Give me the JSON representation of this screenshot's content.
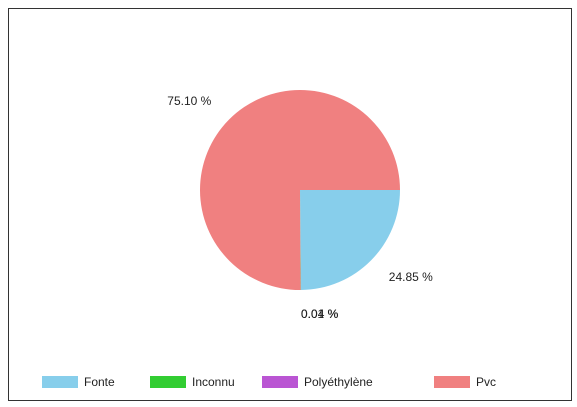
{
  "chart_data": {
    "type": "pie",
    "categories": [
      "Fonte",
      "Inconnu",
      "Polyéthylène",
      "Pvc"
    ],
    "values": [
      24.85,
      0.04,
      0.01,
      75.1
    ],
    "value_labels": [
      "24.85 %",
      "0.04 %",
      "0.01 %",
      "75.10 %"
    ],
    "colors": [
      "#87ceeb",
      "#32cd32",
      "#ba55d3",
      "#f08080"
    ],
    "legend": "bottom"
  }
}
